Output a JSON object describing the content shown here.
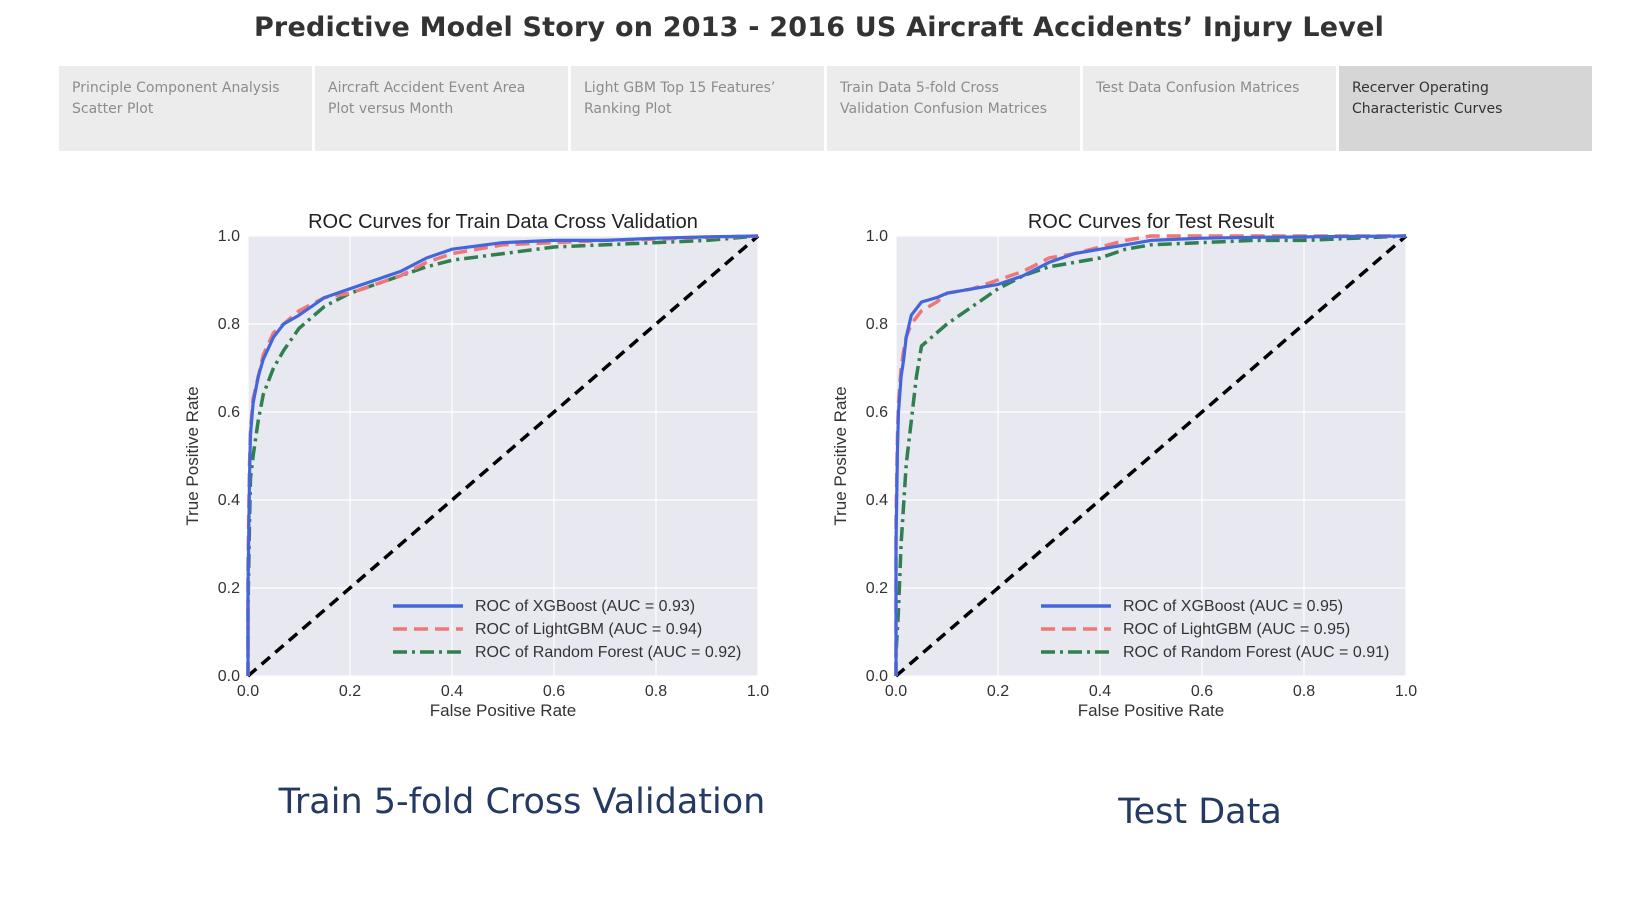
{
  "story": {
    "title": "Predictive Model Story on 2013 - 2016 US Aircraft Accidents’ Injury Level",
    "tabs": [
      {
        "label": "Principle Component Analysis Scatter Plot",
        "active": false
      },
      {
        "label": "Aircraft Accident Event Area Plot versus Month",
        "active": false
      },
      {
        "label": "Light GBM Top 15 Features’ Ranking Plot",
        "active": false
      },
      {
        "label": "Train Data 5-fold Cross Validation Confusion Matrices",
        "active": false
      },
      {
        "label": "Test Data Confusion Matrices",
        "active": false
      },
      {
        "label": "Recerver Operating Characteristic Curves",
        "active": true
      }
    ]
  },
  "captions": {
    "left": "Train 5-fold Cross Validation",
    "right": "Test Data"
  },
  "colors": {
    "plot_background": "#e8e8f1",
    "grid": "#ffffff",
    "xgboost": "#4466dd",
    "lightgbm": "#ee7777",
    "random_forest": "#2f7f4f",
    "diagonal": "#000000"
  },
  "chart_data": [
    {
      "type": "line",
      "title": "ROC Curves for Train Data Cross Validation",
      "xlabel": "False Positive Rate",
      "ylabel": "True Positive Rate",
      "xlim": [
        0,
        1
      ],
      "ylim": [
        0,
        1
      ],
      "x_ticks": [
        "0.0",
        "0.2",
        "0.4",
        "0.6",
        "0.8",
        "1.0"
      ],
      "y_ticks": [
        "0.0",
        "0.2",
        "0.4",
        "0.6",
        "0.8",
        "1.0"
      ],
      "grid": true,
      "legend_position": "lower-right",
      "series": [
        {
          "name": "ROC of XGBoost (AUC = 0.93)",
          "style": "solid",
          "color": "#4466dd",
          "x": [
            0,
            0,
            0.003,
            0.005,
            0.01,
            0.02,
            0.03,
            0.05,
            0.07,
            0.1,
            0.15,
            0.2,
            0.25,
            0.3,
            0.35,
            0.4,
            0.5,
            0.6,
            0.7,
            0.8,
            0.9,
            1.0
          ],
          "y": [
            0,
            0.2,
            0.45,
            0.55,
            0.62,
            0.68,
            0.72,
            0.77,
            0.8,
            0.82,
            0.86,
            0.88,
            0.9,
            0.92,
            0.95,
            0.97,
            0.985,
            0.99,
            0.99,
            0.995,
            0.998,
            1.0
          ]
        },
        {
          "name": "ROC of LightGBM (AUC = 0.94)",
          "style": "dashed",
          "color": "#ee7777",
          "x": [
            0,
            0,
            0.003,
            0.005,
            0.01,
            0.02,
            0.03,
            0.05,
            0.07,
            0.1,
            0.15,
            0.2,
            0.25,
            0.3,
            0.35,
            0.4,
            0.5,
            0.6,
            0.7,
            0.8,
            0.9,
            1.0
          ],
          "y": [
            0,
            0.25,
            0.48,
            0.56,
            0.63,
            0.68,
            0.73,
            0.78,
            0.8,
            0.83,
            0.86,
            0.87,
            0.89,
            0.91,
            0.94,
            0.96,
            0.98,
            0.985,
            0.99,
            0.993,
            0.997,
            1.0
          ]
        },
        {
          "name": "ROC of Random Forest (AUC = 0.92)",
          "style": "dashdot",
          "color": "#2f7f4f",
          "x": [
            0,
            0,
            0.003,
            0.005,
            0.01,
            0.02,
            0.03,
            0.05,
            0.07,
            0.1,
            0.15,
            0.2,
            0.25,
            0.3,
            0.35,
            0.4,
            0.5,
            0.6,
            0.7,
            0.8,
            0.9,
            1.0
          ],
          "y": [
            0,
            0.15,
            0.35,
            0.45,
            0.5,
            0.58,
            0.64,
            0.7,
            0.74,
            0.79,
            0.84,
            0.87,
            0.89,
            0.91,
            0.93,
            0.945,
            0.96,
            0.975,
            0.98,
            0.985,
            0.99,
            1.0
          ]
        },
        {
          "name": "",
          "style": "diagonal",
          "color": "#000000",
          "x": [
            0,
            1
          ],
          "y": [
            0,
            1
          ]
        }
      ]
    },
    {
      "type": "line",
      "title": "ROC Curves for Test Result",
      "xlabel": "False Positive Rate",
      "ylabel": "True Positive Rate",
      "xlim": [
        0,
        1
      ],
      "ylim": [
        0,
        1
      ],
      "x_ticks": [
        "0.0",
        "0.2",
        "0.4",
        "0.6",
        "0.8",
        "1.0"
      ],
      "y_ticks": [
        "0.0",
        "0.2",
        "0.4",
        "0.6",
        "0.8",
        "1.0"
      ],
      "grid": true,
      "legend_position": "lower-right",
      "series": [
        {
          "name": "ROC of XGBoost (AUC = 0.95)",
          "style": "solid",
          "color": "#4466dd",
          "x": [
            0,
            0,
            0.003,
            0.005,
            0.01,
            0.015,
            0.02,
            0.03,
            0.05,
            0.08,
            0.1,
            0.15,
            0.2,
            0.25,
            0.3,
            0.35,
            0.4,
            0.45,
            0.5,
            0.6,
            0.7,
            0.8,
            0.9,
            1.0
          ],
          "y": [
            0,
            0.3,
            0.52,
            0.6,
            0.68,
            0.72,
            0.77,
            0.82,
            0.85,
            0.86,
            0.87,
            0.88,
            0.89,
            0.91,
            0.94,
            0.96,
            0.97,
            0.98,
            0.99,
            0.995,
            0.997,
            0.998,
            0.999,
            1.0
          ]
        },
        {
          "name": "ROC of LightGBM (AUC = 0.95)",
          "style": "dashed",
          "color": "#ee7777",
          "x": [
            0,
            0,
            0.003,
            0.005,
            0.01,
            0.015,
            0.02,
            0.03,
            0.05,
            0.08,
            0.1,
            0.15,
            0.2,
            0.25,
            0.3,
            0.35,
            0.4,
            0.45,
            0.5,
            0.6,
            0.7,
            0.8,
            0.9,
            1.0
          ],
          "y": [
            0,
            0.35,
            0.55,
            0.62,
            0.7,
            0.74,
            0.77,
            0.8,
            0.83,
            0.85,
            0.87,
            0.88,
            0.9,
            0.92,
            0.95,
            0.96,
            0.975,
            0.99,
            1.0,
            1.0,
            1.0,
            1.0,
            1.0,
            1.0
          ]
        },
        {
          "name": "ROC of Random Forest (AUC = 0.91)",
          "style": "dashdot",
          "color": "#2f7f4f",
          "x": [
            0,
            0,
            0.005,
            0.01,
            0.02,
            0.03,
            0.04,
            0.05,
            0.07,
            0.1,
            0.15,
            0.2,
            0.25,
            0.3,
            0.35,
            0.4,
            0.45,
            0.5,
            0.6,
            0.7,
            0.8,
            0.9,
            1.0
          ],
          "y": [
            0,
            0.05,
            0.15,
            0.3,
            0.48,
            0.58,
            0.68,
            0.75,
            0.77,
            0.8,
            0.84,
            0.88,
            0.91,
            0.93,
            0.94,
            0.95,
            0.97,
            0.98,
            0.985,
            0.99,
            0.99,
            0.995,
            1.0
          ]
        },
        {
          "name": "",
          "style": "diagonal",
          "color": "#000000",
          "x": [
            0,
            1
          ],
          "y": [
            0,
            1
          ]
        }
      ]
    }
  ]
}
